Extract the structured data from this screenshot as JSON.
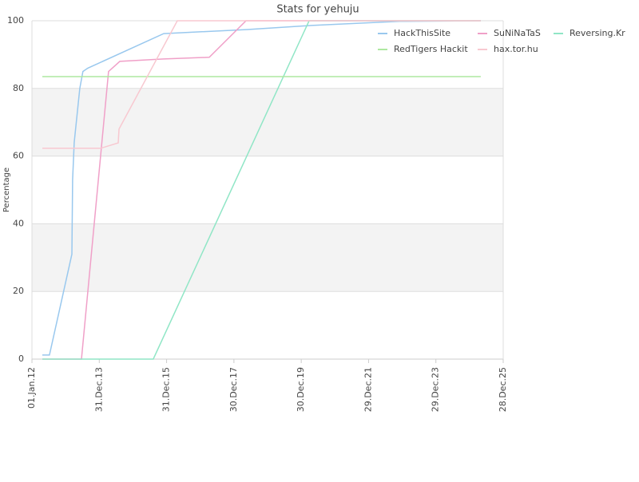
{
  "chart_data": {
    "type": "line",
    "title": "Stats for yehuju",
    "y_label": "Percentage",
    "xlim": [
      "01.Jan.12",
      "28.Dec.25"
    ],
    "xticks": [
      "01.Jan.12",
      "31.Dec.13",
      "31.Dec.15",
      "30.Dec.17",
      "30.Dec.19",
      "29.Dec.21",
      "29.Dec.23",
      "28.Dec.25"
    ],
    "ylim": [
      0,
      100
    ],
    "yticks": [
      0,
      20,
      40,
      60,
      80,
      100
    ],
    "grid": true,
    "alternate_bands": true,
    "legend": "top-right",
    "series": [
      {
        "name": "HackThisSite",
        "color": "#99c8ee",
        "x": [
          "23.Apr.12",
          "09.Jul.12",
          "09.Mar.13",
          "17.Mar.13",
          "03.Apr.13",
          "03.Jun.13",
          "07.Jul.13",
          "28.Aug.13",
          "30.Nov.15",
          "27.May.18",
          "19.Apr.20",
          "28.Nov.22",
          "29.Apr.25"
        ],
        "values": [
          1.2,
          1.2,
          31,
          53,
          64,
          80,
          85,
          86,
          96.2,
          97.4,
          98.6,
          99.8,
          100
        ]
      },
      {
        "name": "SuNiNaTaS",
        "color": "#f0a0c8",
        "x": [
          "23.Apr.12",
          "21.Jun.13",
          "11.Apr.14",
          "11.Aug.14",
          "30.Nov.15",
          "07.Apr.17",
          "10.May.18",
          "29.Apr.25"
        ],
        "values": [
          0,
          0,
          85,
          88,
          88.7,
          89.2,
          100,
          100
        ]
      },
      {
        "name": "Reversing.Kr",
        "color": "#90e6c6",
        "x": [
          "23.Apr.12",
          "09.Aug.15",
          "24.Mar.20",
          "29.Apr.25"
        ],
        "values": [
          0,
          0,
          100,
          100
        ]
      },
      {
        "name": "RedTigers Hackit",
        "color": "#aee8a0",
        "x": [
          "23.Apr.12",
          "29.Apr.25"
        ],
        "values": [
          83.5,
          83.5
        ]
      },
      {
        "name": "hax.tor.hu",
        "color": "#f8c8d0",
        "x": [
          "23.Apr.12",
          "15.Jan.14",
          "24.Jul.14",
          "02.Aug.14",
          "25.Apr.16",
          "29.Apr.25"
        ],
        "values": [
          62.3,
          62.3,
          63.9,
          68,
          100,
          100
        ]
      }
    ]
  }
}
